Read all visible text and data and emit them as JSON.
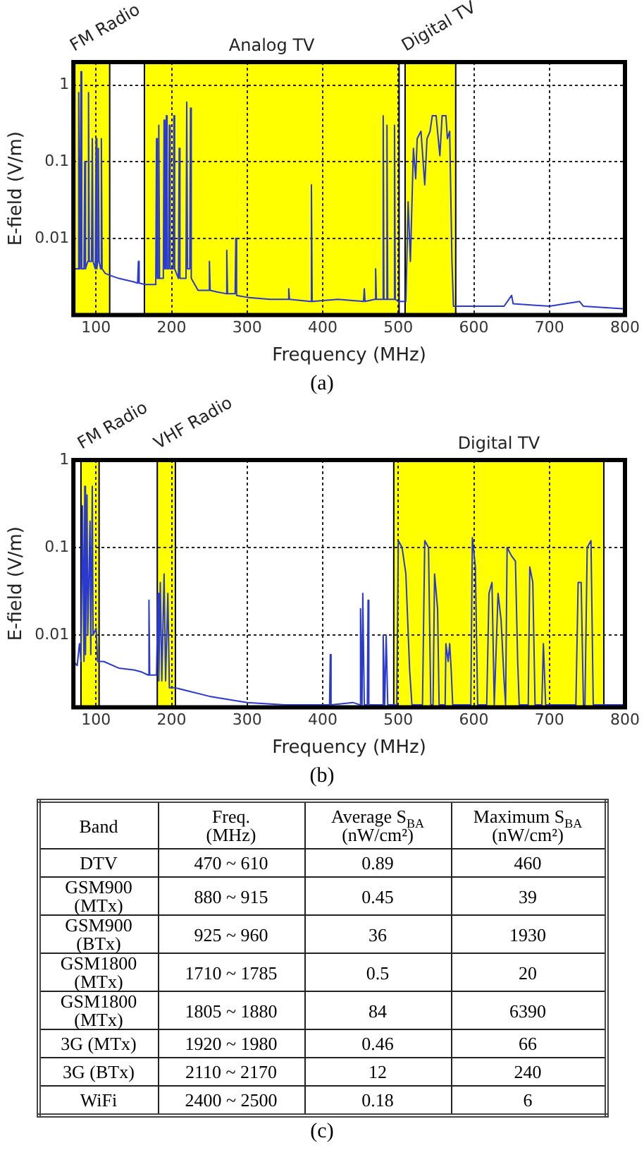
{
  "chart_data": [
    {
      "type": "line",
      "xlabel": "Frequency (MHz)",
      "ylabel": "E-field (V/m)",
      "log": "y",
      "grid": true,
      "marker": "none",
      "line_style": "solid",
      "xlim": [
        70,
        800
      ],
      "xticks": [
        100,
        200,
        300,
        400,
        500,
        600,
        700,
        800
      ],
      "ylim": [
        0.001,
        2
      ],
      "yticks": [
        0.01,
        0.1,
        1
      ],
      "bands": [
        {
          "axis": "x",
          "from": 70,
          "to": 118,
          "label": "FM Radio",
          "color": "#ffff00"
        },
        {
          "axis": "x",
          "from": 164,
          "to": 501,
          "label": "Analog TV",
          "color": "#ffff00"
        },
        {
          "axis": "x",
          "from": 509,
          "to": 576,
          "label": "Digital TV",
          "color": "#ffff00"
        }
      ],
      "annotations": [
        "(a)"
      ],
      "x": [
        70,
        75,
        76,
        77,
        78,
        79,
        80,
        81,
        84,
        85,
        86,
        89,
        90,
        91,
        94,
        95,
        96,
        99,
        100,
        101,
        102,
        103,
        104,
        106,
        107,
        108,
        112,
        118,
        130,
        150,
        155,
        156,
        157,
        165,
        175,
        179,
        180,
        181,
        182,
        183,
        184,
        189,
        190,
        191,
        192,
        193,
        194,
        196,
        197,
        198,
        202,
        203,
        204,
        209,
        210,
        211,
        219,
        220,
        221,
        224,
        225,
        226,
        235,
        249,
        250,
        251,
        260,
        272,
        273,
        274,
        284,
        285,
        286,
        300,
        330,
        354,
        355,
        356,
        384,
        385,
        386,
        420,
        454,
        455,
        456,
        469,
        470,
        471,
        479,
        480,
        481,
        484,
        485,
        486,
        494,
        495,
        496,
        500,
        505,
        510,
        513,
        516,
        520,
        523,
        525,
        530,
        535,
        538,
        542,
        545,
        550,
        555,
        558,
        563,
        565,
        568,
        571,
        573,
        600,
        640,
        650,
        652,
        700,
        740,
        745,
        800
      ],
      "series": [
        {
          "color": "#2a3ad0",
          "values": [
            0.004,
            0.004,
            0.004,
            0.8,
            0.004,
            0.05,
            1.5,
            0.004,
            0.004,
            0.1,
            0.004,
            0.005,
            0.8,
            0.005,
            0.005,
            0.2,
            0.005,
            0.004,
            0.2,
            0.004,
            0.005,
            0.15,
            0.005,
            0.004,
            0.2,
            0.004,
            0.0035,
            0.0033,
            0.003,
            0.0027,
            0.0026,
            0.005,
            0.0026,
            0.0025,
            0.0025,
            0.0025,
            0.2,
            0.003,
            0.003,
            0.3,
            0.003,
            0.003,
            0.35,
            0.004,
            0.004,
            0.4,
            0.004,
            0.004,
            0.3,
            0.004,
            0.004,
            0.4,
            0.004,
            0.003,
            0.15,
            0.003,
            0.003,
            0.6,
            0.004,
            0.004,
            0.5,
            0.003,
            0.0021,
            0.0021,
            0.005,
            0.0021,
            0.002,
            0.0019,
            0.007,
            0.0019,
            0.0019,
            0.01,
            0.0018,
            0.0017,
            0.0016,
            0.0016,
            0.0022,
            0.0016,
            0.0015,
            0.05,
            0.0015,
            0.0016,
            0.0015,
            0.0022,
            0.0015,
            0.0016,
            0.004,
            0.0016,
            0.0016,
            0.4,
            0.0016,
            0.0016,
            0.3,
            0.0016,
            0.0016,
            0.3,
            0.0016,
            0.0015,
            0.0015,
            0.0015,
            0.03,
            0.005,
            0.15,
            0.06,
            0.2,
            0.25,
            0.05,
            0.2,
            0.25,
            0.4,
            0.4,
            0.12,
            0.4,
            0.4,
            0.2,
            0.25,
            0.005,
            0.0013,
            0.0013,
            0.0013,
            0.0018,
            0.0014,
            0.0013,
            0.0015,
            0.0013,
            0.0012
          ]
        }
      ]
    },
    {
      "type": "line",
      "xlabel": "Frequency (MHz)",
      "ylabel": "E-field (V/m)",
      "log": "y",
      "grid": true,
      "marker": "none",
      "line_style": "solid",
      "xlim": [
        70,
        800
      ],
      "xticks": [
        100,
        200,
        300,
        400,
        500,
        600,
        700,
        800
      ],
      "ylim": [
        0.0015,
        1
      ],
      "yticks": [
        0.01,
        0.1,
        1
      ],
      "bands": [
        {
          "axis": "x",
          "from": 80,
          "to": 104,
          "label": "FM Radio",
          "color": "#ffff00"
        },
        {
          "axis": "x",
          "from": 181,
          "to": 205,
          "label": "VHF Radio",
          "color": "#ffff00"
        },
        {
          "axis": "x",
          "from": 494,
          "to": 772,
          "label": "Digital TV",
          "color": "#ffff00"
        }
      ],
      "annotations": [
        "(b)"
      ],
      "x": [
        70,
        75,
        78,
        80,
        82,
        84,
        85,
        86,
        88,
        89,
        92,
        93,
        95,
        96,
        100,
        102,
        110,
        130,
        150,
        160,
        169,
        170,
        171,
        180,
        182,
        183,
        185,
        187,
        190,
        192,
        195,
        197,
        205,
        250,
        300,
        350,
        400,
        409,
        410,
        411,
        440,
        449,
        450,
        452,
        453,
        455,
        459,
        460,
        461,
        479,
        480,
        482,
        484,
        486,
        495,
        498,
        500,
        505,
        510,
        515,
        518,
        532,
        535,
        540,
        543,
        546,
        548,
        552,
        554,
        562,
        563,
        566,
        568,
        570,
        572,
        596,
        598,
        602,
        605,
        617,
        620,
        624,
        627,
        632,
        636,
        640,
        642,
        644,
        650,
        655,
        658,
        660,
        672,
        674,
        678,
        681,
        690,
        692,
        695,
        735,
        738,
        742,
        745,
        747,
        750,
        755,
        758,
        775,
        800
      ],
      "series": [
        {
          "color": "#2a3ad0",
          "values": [
            0.005,
            0.0045,
            0.008,
            0.005,
            0.3,
            0.005,
            0.5,
            0.006,
            0.4,
            0.01,
            0.2,
            0.006,
            0.5,
            0.01,
            0.012,
            0.005,
            0.005,
            0.0042,
            0.004,
            0.0038,
            0.0035,
            0.025,
            0.0035,
            0.0035,
            0.03,
            0.003,
            0.04,
            0.003,
            0.05,
            0.003,
            0.03,
            0.0025,
            0.0025,
            0.002,
            0.0017,
            0.0016,
            0.0016,
            0.0016,
            0.006,
            0.0016,
            0.0017,
            0.0016,
            0.02,
            0.0016,
            0.03,
            0.0016,
            0.0016,
            0.025,
            0.0016,
            0.0016,
            0.01,
            0.0016,
            0.01,
            0.0016,
            0.0016,
            0.0016,
            0.12,
            0.1,
            0.05,
            0.004,
            0.0016,
            0.0016,
            0.12,
            0.1,
            0.0016,
            0.0016,
            0.05,
            0.02,
            0.0016,
            0.0016,
            0.008,
            0.005,
            0.008,
            0.004,
            0.0016,
            0.0016,
            0.13,
            0.06,
            0.0016,
            0.0016,
            0.03,
            0.04,
            0.0016,
            0.03,
            0.015,
            0.003,
            0.0016,
            0.1,
            0.08,
            0.07,
            0.005,
            0.0016,
            0.0016,
            0.06,
            0.04,
            0.0016,
            0.0016,
            0.008,
            0.0016,
            0.0016,
            0.04,
            0.04,
            0.0016,
            0.0016,
            0.1,
            0.12,
            0.0016,
            0.0016,
            0.0016
          ]
        }
      ]
    },
    {
      "type": "other",
      "categories": [
        "Band",
        "Freq. (MHz)",
        "Average S$_{BA}$ (nW/cm²)",
        "Maximum S$_{BA}$ (nW/cm²)"
      ],
      "cell_labels": [
        [
          "DTV",
          "470 ~ 610",
          "0.89",
          "460"
        ],
        [
          "GSM900 (MTx)",
          "880 ~ 915",
          "0.45",
          "39"
        ],
        [
          "GSM900 (BTx)",
          "925 ~ 960",
          "36",
          "1930"
        ],
        [
          "GSM1800 (MTx)",
          "1710 ~ 1785",
          "0.5",
          "20"
        ],
        [
          "GSM1800 (MTx)",
          "1805 ~ 1880",
          "84",
          "6390"
        ],
        [
          "3G (MTx)",
          "1920 ~ 1980",
          "0.46",
          "66"
        ],
        [
          "3G (BTx)",
          "2110 ~ 2170",
          "12",
          "240"
        ],
        [
          "WiFi",
          "2400 ~ 2500",
          "0.18",
          "6"
        ]
      ],
      "annotations": [
        "(c)"
      ]
    }
  ]
}
